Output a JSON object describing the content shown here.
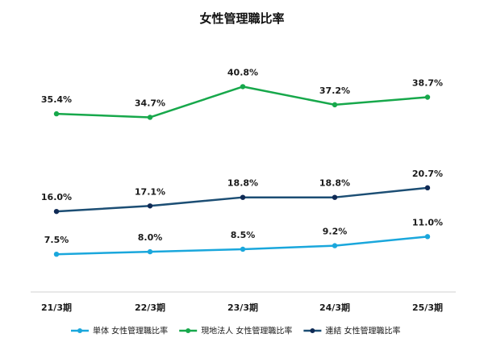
{
  "chart_data": {
    "type": "line",
    "title": "女性管理職比率",
    "categories": [
      "21/3期",
      "22/3期",
      "23/3期",
      "24/3期",
      "25/3期"
    ],
    "series": [
      {
        "name": "単体 女性管理職比率",
        "values": [
          7.5,
          8.0,
          8.5,
          9.2,
          11.0
        ],
        "labels": [
          "7.5%",
          "8.0%",
          "8.5%",
          "9.2%",
          "11.0%"
        ],
        "color": "#1aa7dc",
        "marker_color": "#1aa7dc"
      },
      {
        "name": "現地法人 女性管理職比率",
        "values": [
          35.4,
          34.7,
          40.8,
          37.2,
          38.7
        ],
        "labels": [
          "35.4%",
          "34.7%",
          "40.8%",
          "37.2%",
          "38.7%"
        ],
        "color": "#17a84b",
        "marker_color": "#17a84b"
      },
      {
        "name": "連結 女性管理職比率",
        "values": [
          16.0,
          17.1,
          18.8,
          18.8,
          20.7
        ],
        "labels": [
          "16.0%",
          "17.1%",
          "18.8%",
          "18.8%",
          "20.7%"
        ],
        "color": "#1c4e74",
        "marker_color": "#0f2a55"
      }
    ],
    "ylim": [
      0,
      45
    ],
    "grid": false,
    "legend_position": "bottom",
    "axis_color": "#d0d0d0"
  }
}
